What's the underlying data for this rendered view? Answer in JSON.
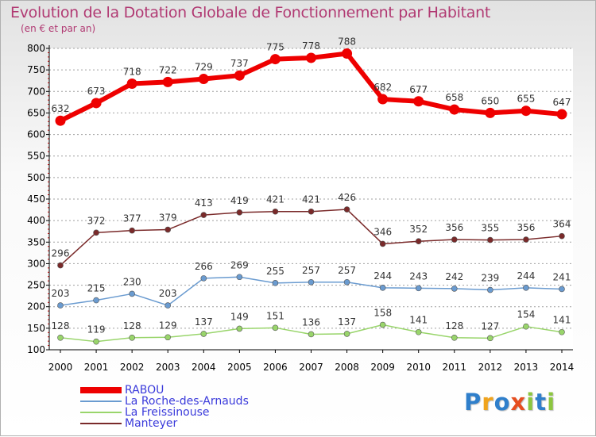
{
  "title": "Evolution de la Dotation Globale de Fonctionnement par Habitant",
  "subtitle": "(en € et par an)",
  "colors": {
    "title": "#b13a73",
    "axis": "#000000",
    "grid": "#a0a0a0",
    "legend_text": "#3a3adb"
  },
  "logo": {
    "letters": [
      "P",
      "r",
      "o",
      "x",
      "i",
      "t",
      "i"
    ],
    "colors": [
      "#2f7fcb",
      "#f0a31c",
      "#2f7fcb",
      "#e64e1f",
      "#8cc63f",
      "#2f7fcb",
      "#8cc63f"
    ]
  },
  "chart_data": {
    "type": "line",
    "title": "Evolution de la Dotation Globale de Fonctionnement par Habitant",
    "subtitle": "(en € et par an)",
    "xlabel": "",
    "ylabel": "",
    "x": [
      "2000",
      "2001",
      "2002",
      "2003",
      "2004",
      "2005",
      "2006",
      "2007",
      "2008",
      "2009",
      "2010",
      "2011",
      "2012",
      "2013",
      "2014"
    ],
    "ylim": [
      100,
      800
    ],
    "yticks": [
      "100",
      "150",
      "200",
      "250",
      "300",
      "350",
      "400",
      "450",
      "500",
      "550",
      "600",
      "650",
      "700",
      "750",
      "800"
    ],
    "grid": "horizontal dashed",
    "legend_position": "bottom-left",
    "series": [
      {
        "name": "RABOU",
        "color": "#ee0000",
        "values": [
          632,
          673,
          718,
          722,
          729,
          737,
          775,
          778,
          788,
          682,
          677,
          658,
          650,
          655,
          647
        ],
        "labels": [
          "632",
          "673",
          "718",
          "722",
          "729",
          "737",
          "775",
          "778",
          "788",
          "682",
          "677",
          "658",
          "650",
          "655",
          "647"
        ]
      },
      {
        "name": "La Roche-des-Arnauds",
        "color": "#6a9bd0",
        "values": [
          203,
          215,
          230,
          203,
          266,
          269,
          255,
          257,
          257,
          244,
          243,
          242,
          239,
          244,
          241
        ],
        "labels": [
          "203",
          "215",
          "230",
          "203",
          "266",
          "269",
          "255",
          "257",
          "257",
          "244",
          "243",
          "242",
          "239",
          "244",
          "241"
        ]
      },
      {
        "name": "La Freissinouse",
        "color": "#99d56b",
        "values": [
          128,
          119,
          128,
          129,
          137,
          149,
          151,
          136,
          137,
          158,
          141,
          128,
          127,
          154,
          141
        ],
        "labels": [
          "128",
          "119",
          "128",
          "129",
          "137",
          "149",
          "151",
          "136",
          "137",
          "158",
          "141",
          "128",
          "127",
          "154",
          "141"
        ]
      },
      {
        "name": "Manteyer",
        "color": "#7a2a2a",
        "values": [
          296,
          372,
          377,
          379,
          413,
          419,
          421,
          421,
          426,
          346,
          352,
          356,
          355,
          356,
          364
        ],
        "labels": [
          "296",
          "372",
          "377",
          "379",
          "413",
          "419",
          "421",
          "421",
          "426",
          "346",
          "352",
          "356",
          "355",
          "356",
          "364"
        ]
      }
    ]
  }
}
